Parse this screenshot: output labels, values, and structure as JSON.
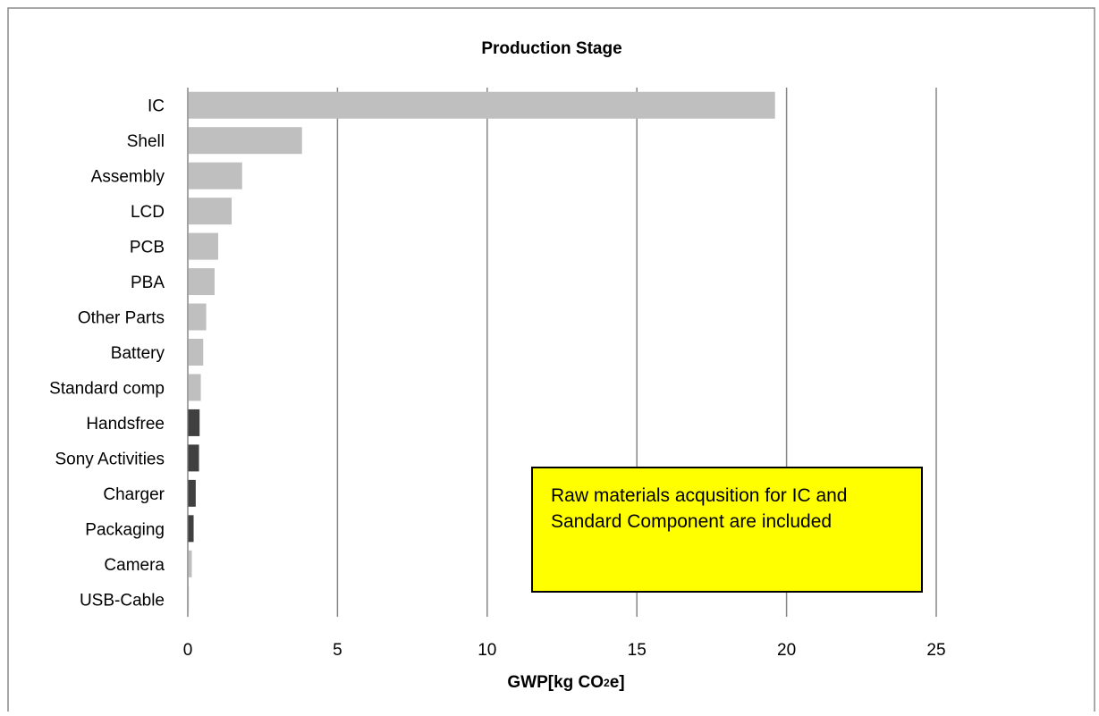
{
  "chart_data": {
    "type": "bar",
    "orientation": "horizontal",
    "title": "Production Stage",
    "xlabel_main": "GWP[kg CO",
    "xlabel_sub": "2",
    "xlabel_end": "e]",
    "ylabel": "",
    "xlim": [
      0,
      25
    ],
    "xticks": [
      "0",
      "5",
      "10",
      "15",
      "20",
      "25"
    ],
    "grid": "vertical",
    "categories": [
      "IC",
      "Shell",
      "Assembly",
      "LCD",
      "PCB",
      "PBA",
      "Other Parts",
      "Battery",
      "Standard comp",
      "Handsfree",
      "Sony Activities",
      "Charger",
      "Packaging",
      "Camera",
      "USB-Cable"
    ],
    "values": [
      19.6,
      3.8,
      1.8,
      1.45,
      1.0,
      0.88,
      0.6,
      0.5,
      0.42,
      0.38,
      0.36,
      0.25,
      0.18,
      0.12,
      0.02
    ],
    "colors": [
      "#bfbfbf",
      "#bfbfbf",
      "#bfbfbf",
      "#bfbfbf",
      "#bfbfbf",
      "#bfbfbf",
      "#bfbfbf",
      "#bfbfbf",
      "#bfbfbf",
      "#404040",
      "#404040",
      "#404040",
      "#404040",
      "#bfbfbf",
      "#bfbfbf"
    ],
    "annotation": "Raw materials acqusition  for IC and Sandard Component are included",
    "annotation_color": "#ffff00"
  }
}
